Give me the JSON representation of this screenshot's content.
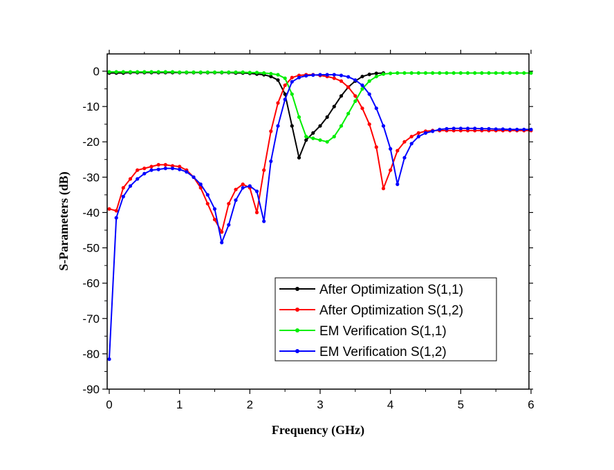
{
  "chart_data": {
    "type": "line",
    "title": "",
    "xlabel": "Frequency (GHz)",
    "ylabel": "S-Parameters (dB)",
    "xlim": [
      0,
      6
    ],
    "ylim": [
      -90,
      5
    ],
    "x_ticks": [
      "0",
      "1",
      "2",
      "3",
      "4",
      "5",
      "6"
    ],
    "y_ticks": [
      "0",
      "-10",
      "-20",
      "-30",
      "-40",
      "-50",
      "-60",
      "-70",
      "-80",
      "-90"
    ],
    "grid": false,
    "legend_position": "bottom-right",
    "x": [
      0,
      0.1,
      0.2,
      0.3,
      0.4,
      0.5,
      0.6,
      0.7,
      0.8,
      0.9,
      1.0,
      1.1,
      1.2,
      1.3,
      1.4,
      1.5,
      1.6,
      1.7,
      1.8,
      1.9,
      2.0,
      2.1,
      2.2,
      2.3,
      2.4,
      2.5,
      2.6,
      2.7,
      2.8,
      2.9,
      3.0,
      3.1,
      3.2,
      3.3,
      3.4,
      3.5,
      3.6,
      3.7,
      3.8,
      3.9,
      4.0,
      4.1,
      4.2,
      4.3,
      4.4,
      4.5,
      4.6,
      4.7,
      4.8,
      4.9,
      5.0,
      5.1,
      5.2,
      5.3,
      5.4,
      5.5,
      5.6,
      5.7,
      5.8,
      5.9,
      6.0
    ],
    "series": [
      {
        "name": "After Optimization S(1,1)",
        "color": "#000000",
        "values": [
          -0.5,
          -0.5,
          -0.5,
          -0.4,
          -0.4,
          -0.4,
          -0.4,
          -0.4,
          -0.4,
          -0.4,
          -0.4,
          -0.4,
          -0.4,
          -0.4,
          -0.4,
          -0.4,
          -0.4,
          -0.4,
          -0.5,
          -0.5,
          -0.6,
          -0.8,
          -1.0,
          -1.5,
          -2.5,
          -6.5,
          -15.5,
          -24.5,
          -19.5,
          -17.5,
          -15.5,
          -13.0,
          -10.0,
          -7.0,
          -4.5,
          -2.8,
          -1.5,
          -0.9,
          -0.6,
          -0.5,
          null,
          null,
          null,
          null,
          null,
          null,
          null,
          null,
          null,
          null,
          null,
          null,
          null,
          null,
          null,
          null,
          null,
          null,
          null,
          null,
          null
        ]
      },
      {
        "name": "After Optimization S(1,2)",
        "color": "#ff0000",
        "values": [
          -39.0,
          -39.5,
          -33.0,
          -30.5,
          -28.0,
          -27.5,
          -27.0,
          -26.5,
          -26.5,
          -26.8,
          -27.0,
          -28.0,
          -30.0,
          -33.0,
          -37.5,
          -42.0,
          -45.5,
          -37.5,
          -33.5,
          -32.0,
          -33.0,
          -40.0,
          -28.0,
          -17.0,
          -9.0,
          -4.0,
          -1.8,
          -1.2,
          -1.0,
          -1.0,
          -1.2,
          -1.5,
          -2.0,
          -2.8,
          -4.5,
          -7.0,
          -10.5,
          -15.0,
          -21.5,
          -33.2,
          -28.0,
          -22.5,
          -20.0,
          -18.5,
          -17.5,
          -17.0,
          -16.8,
          -16.8,
          -16.8,
          -16.8,
          -16.8,
          -16.8,
          -16.8,
          -16.8,
          -16.8,
          -16.8,
          -16.8,
          -16.8,
          -16.8,
          -16.8,
          -16.8
        ]
      },
      {
        "name": "EM Verification S(1,1)",
        "color": "#00ee00",
        "values": [
          -0.2,
          -0.2,
          -0.2,
          -0.2,
          -0.2,
          -0.2,
          -0.2,
          -0.2,
          -0.2,
          -0.2,
          -0.3,
          -0.3,
          -0.3,
          -0.3,
          -0.3,
          -0.3,
          -0.3,
          -0.3,
          -0.3,
          -0.3,
          -0.4,
          -0.4,
          -0.5,
          -0.7,
          -1.0,
          -2.0,
          -6.5,
          -13.0,
          -18.5,
          -19.0,
          -19.5,
          -20.0,
          -18.5,
          -15.5,
          -12.0,
          -8.5,
          -5.0,
          -2.8,
          -1.5,
          -0.8,
          -0.6,
          -0.5,
          -0.5,
          -0.5,
          -0.5,
          -0.5,
          -0.5,
          -0.5,
          -0.5,
          -0.5,
          -0.5,
          -0.5,
          -0.5,
          -0.5,
          -0.5,
          -0.5,
          -0.5,
          -0.5,
          -0.5,
          -0.5,
          -0.5
        ]
      },
      {
        "name": "EM Verification S(1,2)",
        "color": "#0000ff",
        "values": [
          -81.5,
          -41.5,
          -35.5,
          -32.5,
          -30.5,
          -29.0,
          -28.0,
          -27.8,
          -27.5,
          -27.5,
          -27.8,
          -28.5,
          -30.0,
          -32.0,
          -35.0,
          -39.0,
          -48.5,
          -43.5,
          -36.5,
          -33.0,
          -32.5,
          -34.0,
          -42.5,
          -25.5,
          -15.5,
          -8.0,
          -3.0,
          -1.8,
          -1.3,
          -1.1,
          -1.0,
          -1.0,
          -1.0,
          -1.2,
          -1.6,
          -2.5,
          -4.0,
          -6.5,
          -10.5,
          -15.5,
          -22.0,
          -32.0,
          -24.5,
          -20.5,
          -18.5,
          -17.5,
          -17.0,
          -16.5,
          -16.3,
          -16.2,
          -16.2,
          -16.2,
          -16.2,
          -16.3,
          -16.3,
          -16.4,
          -16.4,
          -16.5,
          -16.5,
          -16.5,
          -16.5
        ]
      }
    ]
  }
}
